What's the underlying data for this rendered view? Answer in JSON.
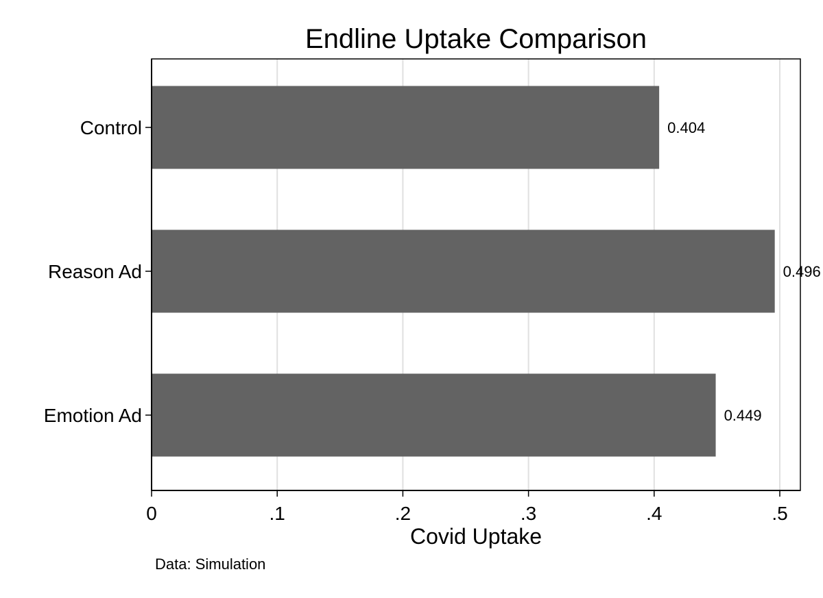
{
  "chart_data": {
    "type": "bar",
    "orientation": "horizontal",
    "title": "Endline Uptake Comparison",
    "xlabel": "Covid Uptake",
    "ylabel": "",
    "categories": [
      "Control",
      "Reason Ad",
      "Emotion Ad"
    ],
    "values": [
      0.404,
      0.496,
      0.449
    ],
    "value_labels": [
      "0.404",
      "0.496",
      "0.449"
    ],
    "xlim": [
      0,
      0.5
    ],
    "xticks": [
      0,
      0.1,
      0.2,
      0.3,
      0.4,
      0.5
    ],
    "xtick_labels": [
      "0",
      ".1",
      ".2",
      ".3",
      ".4",
      ".5"
    ],
    "grid": true,
    "bar_color": "#636363",
    "grid_color": "#e0e0e0",
    "note": "Data: Simulation"
  }
}
